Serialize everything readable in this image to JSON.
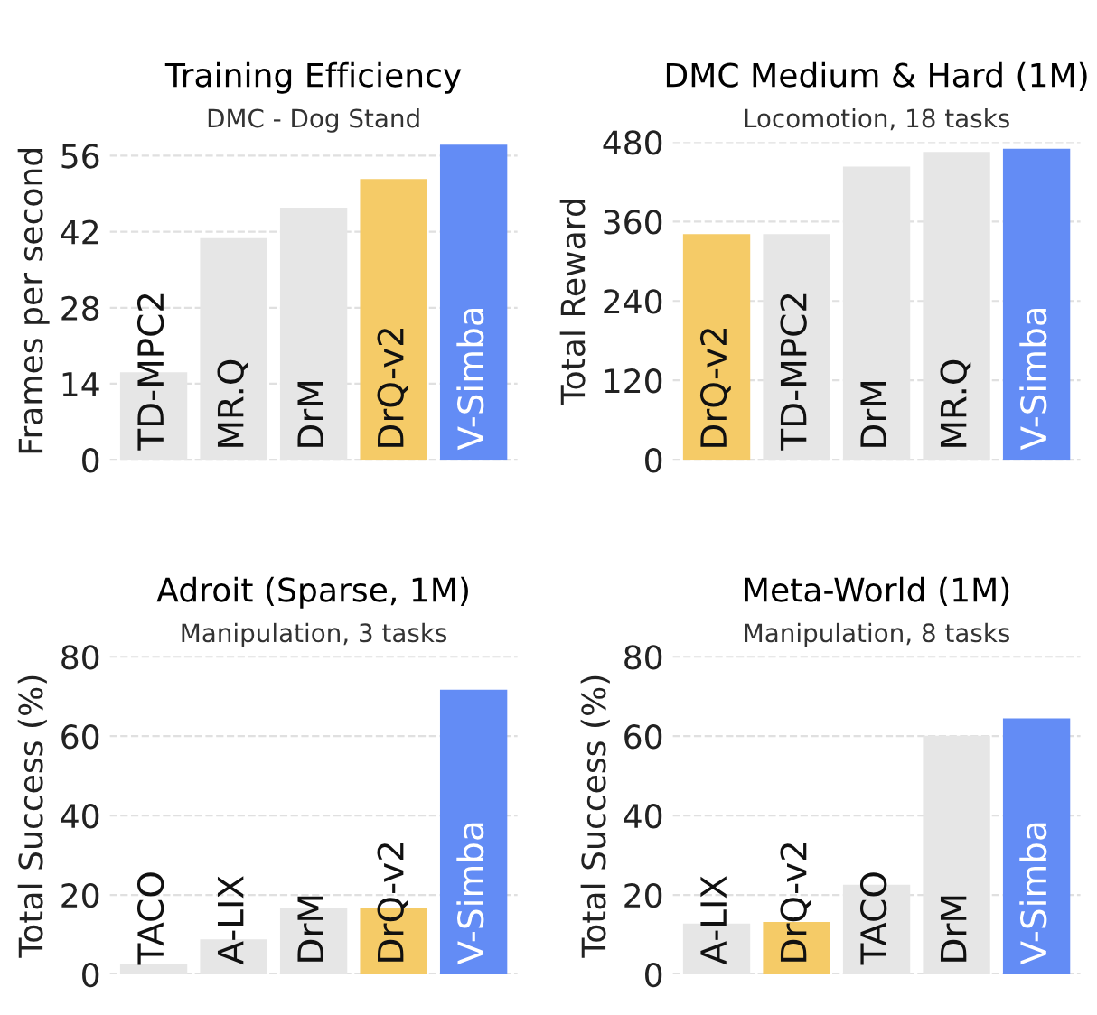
{
  "chart_data": [
    {
      "type": "bar",
      "title": "Training Efficiency",
      "subtitle": "DMC - Dog Stand",
      "ylabel": "Frames per second",
      "categories": [
        "TD-MPC2",
        "MR.Q",
        "DrM",
        "DrQ-v2",
        "V-Simba"
      ],
      "values": [
        16.1,
        40.8,
        46.4,
        51.7,
        58.0
      ],
      "colors": [
        "#e6e6e6",
        "#e6e6e6",
        "#e6e6e6",
        "#f5cb67",
        "#638cf5"
      ],
      "ylim": [
        0,
        58.5
      ],
      "yticks": [
        0,
        14,
        28,
        42,
        56
      ],
      "grid": "y",
      "tick_labels": "y"
    },
    {
      "type": "bar",
      "title": "DMC Medium & Hard (1M)",
      "subtitle": "Locomotion, 18 tasks",
      "ylabel": "Total Reward",
      "categories": [
        "DrQ-v2",
        "TD-MPC2",
        "DrM",
        "MR.Q",
        "V-Simba"
      ],
      "values": [
        341,
        341,
        443,
        465,
        470
      ],
      "colors": [
        "#f5cb67",
        "#e6e6e6",
        "#e6e6e6",
        "#e6e6e6",
        "#638cf5"
      ],
      "ylim": [
        0,
        480
      ],
      "yticks": [
        0,
        120,
        240,
        360,
        480
      ],
      "grid": "y",
      "tick_labels": "y"
    },
    {
      "type": "bar",
      "title": "Adroit (Sparse, 1M)",
      "subtitle": "Manipulation, 3 tasks",
      "ylabel": "Total Success (%)",
      "categories": [
        "TACO",
        "A-LIX",
        "DrM",
        "DrQ-v2",
        "V-Simba"
      ],
      "values": [
        2.7,
        8.8,
        16.8,
        16.8,
        71.7
      ],
      "colors": [
        "#e6e6e6",
        "#e6e6e6",
        "#e6e6e6",
        "#f5cb67",
        "#638cf5"
      ],
      "ylim": [
        0,
        80
      ],
      "yticks": [
        0,
        20,
        40,
        60,
        80
      ],
      "grid": "y",
      "tick_labels": "y"
    },
    {
      "type": "bar",
      "title": "Meta-World (1M)",
      "subtitle": "Manipulation, 8 tasks",
      "ylabel": "Total Success (%)",
      "categories": [
        "A-LIX",
        "DrQ-v2",
        "TACO",
        "DrM",
        "V-Simba"
      ],
      "values": [
        12.8,
        13.2,
        22.6,
        60.1,
        64.5
      ],
      "colors": [
        "#e6e6e6",
        "#f5cb67",
        "#e6e6e6",
        "#e6e6e6",
        "#638cf5"
      ],
      "ylim": [
        0,
        80
      ],
      "yticks": [
        0,
        20,
        40,
        60,
        80
      ],
      "grid": "y",
      "tick_labels": "y"
    }
  ]
}
